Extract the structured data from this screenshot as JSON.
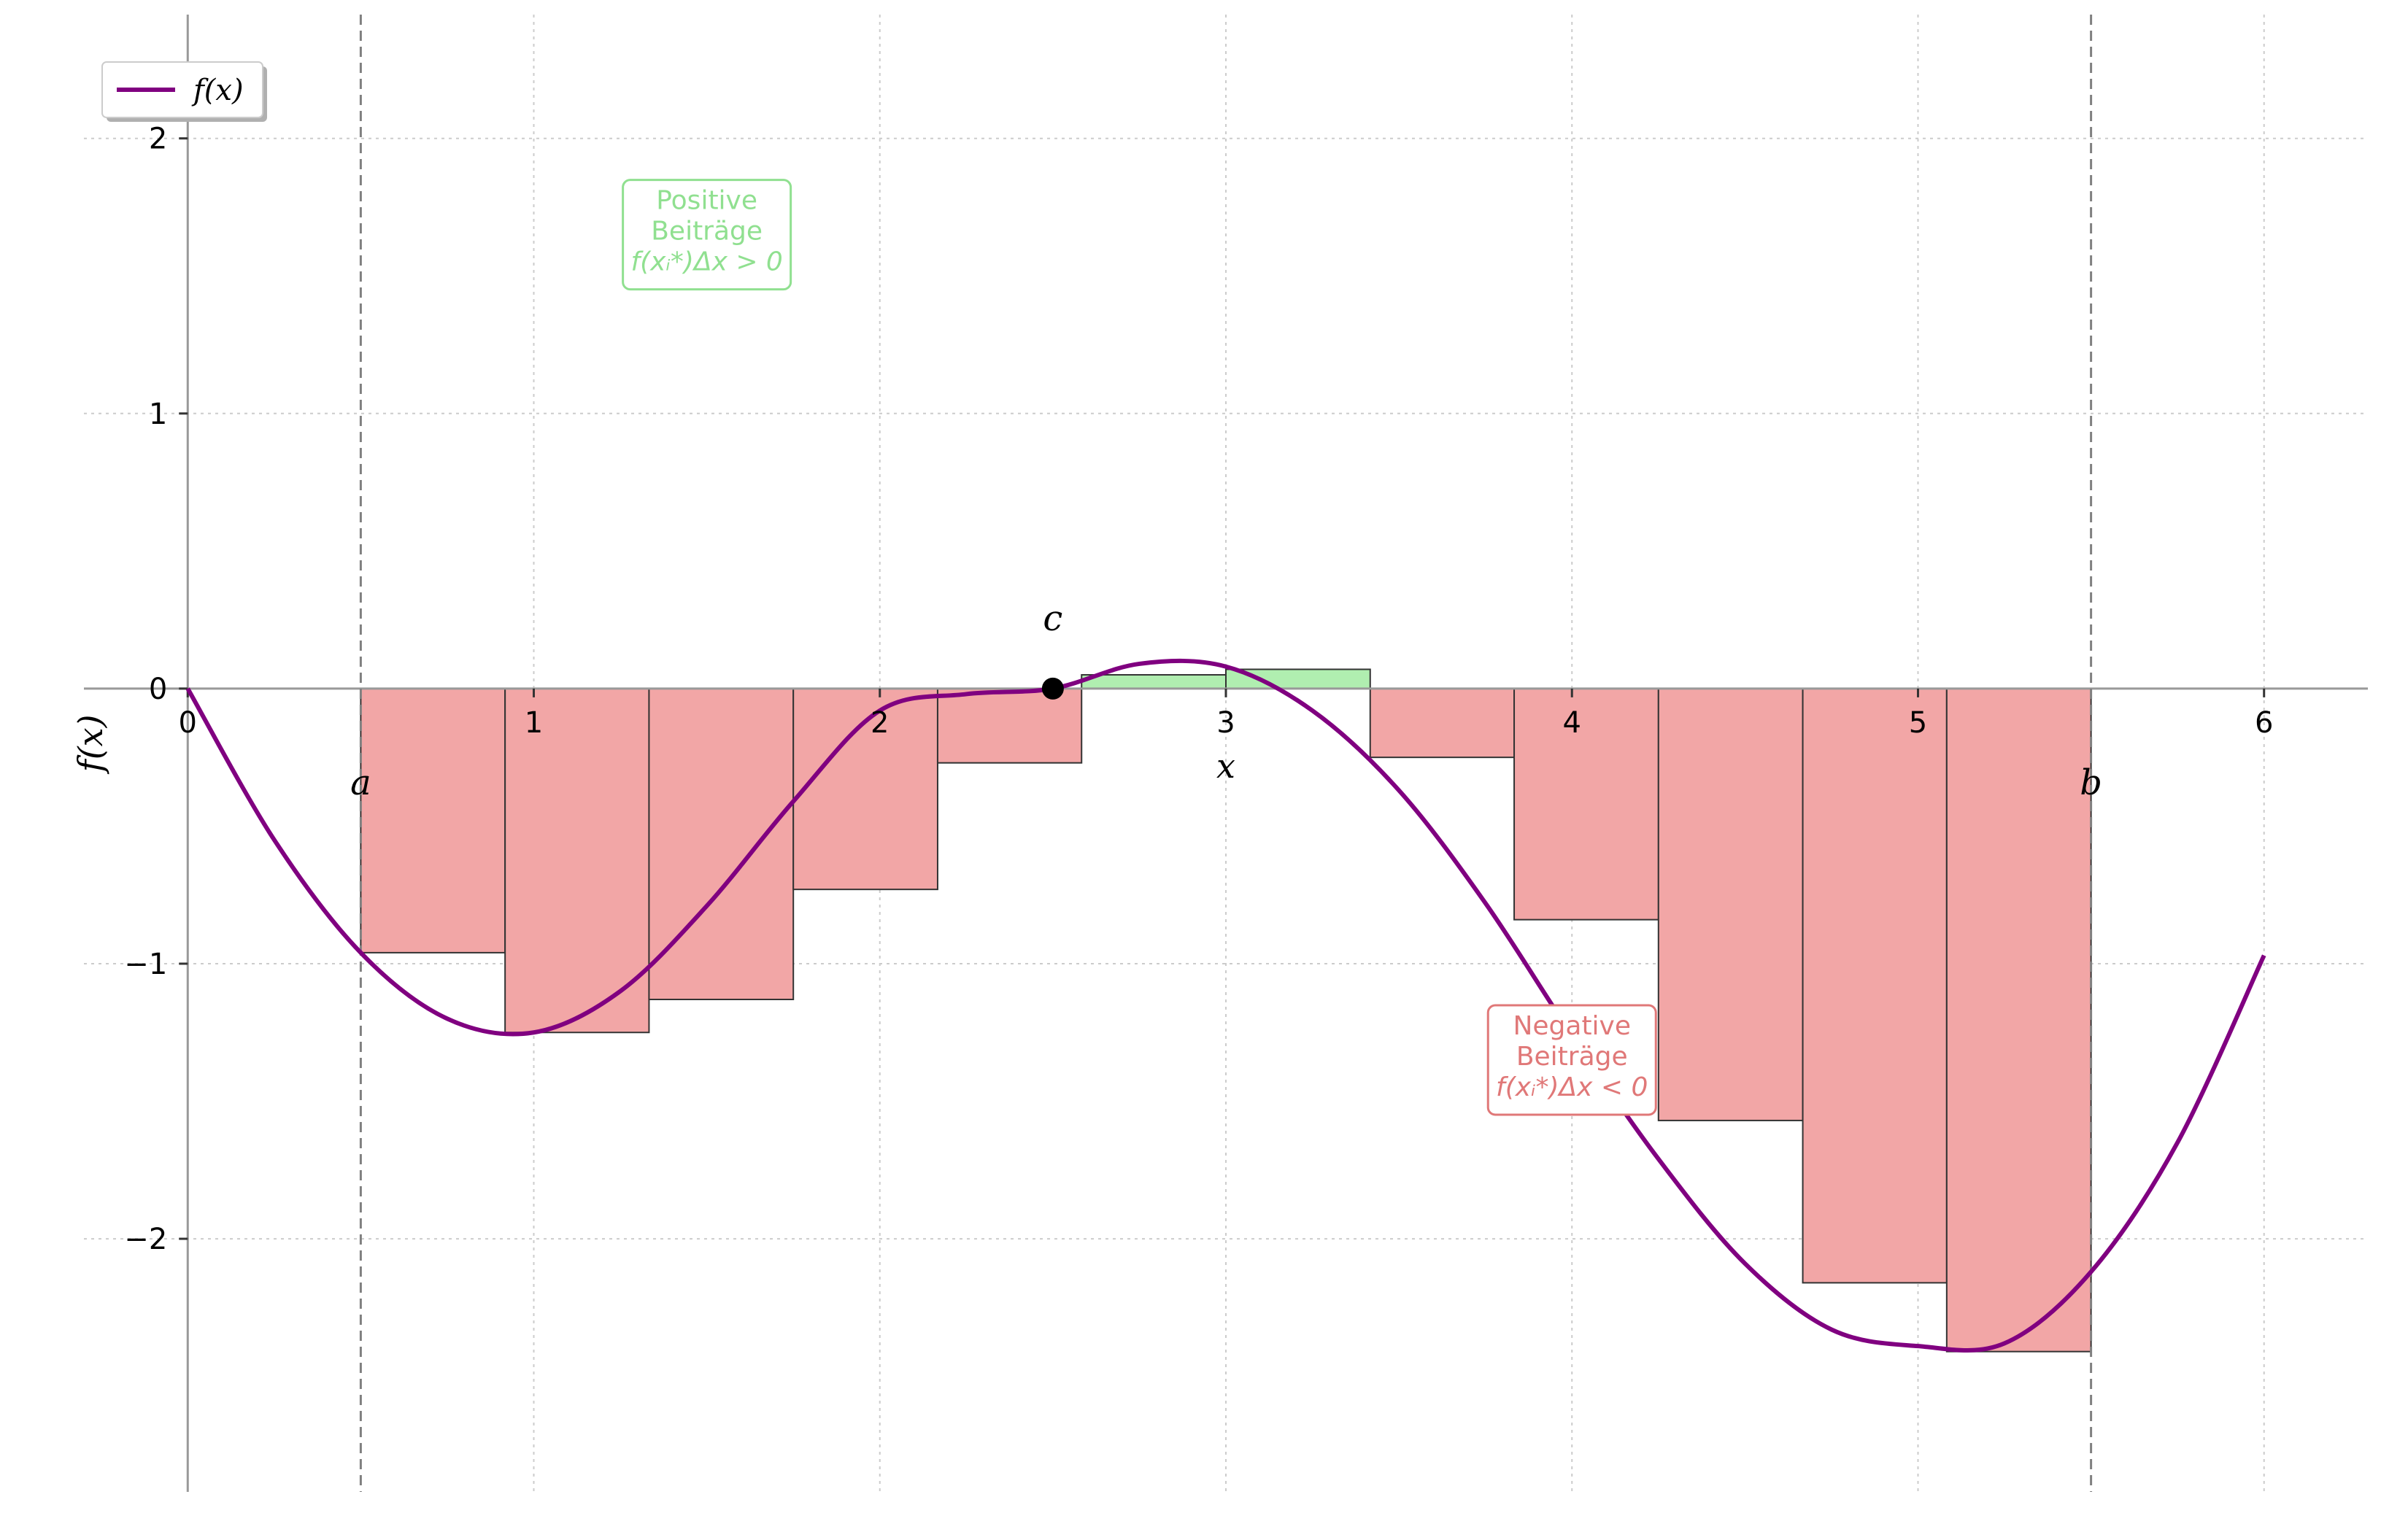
{
  "chart_data": {
    "type": "bar",
    "function_label": "f(x)",
    "xlabel": "x",
    "ylabel": "f(x)",
    "xlim": [
      -0.3,
      6.3
    ],
    "ylim": [
      -2.92,
      2.45
    ],
    "x_ticks": [
      0,
      1,
      2,
      3,
      4,
      5,
      6
    ],
    "x_tick_labels": [
      "0",
      "1",
      "2",
      "3",
      "4",
      "5",
      "6"
    ],
    "y_ticks": [
      -2,
      -1,
      0,
      1,
      2
    ],
    "y_tick_labels": [
      "−2",
      "−1",
      "0",
      "1",
      "2"
    ],
    "grid": true,
    "legend": {
      "position": "top-left",
      "entries": [
        "f(x)"
      ]
    },
    "interval": {
      "a": 0.5,
      "b": 5.5,
      "a_label": "a",
      "b_label": "b"
    },
    "zero_point": {
      "x": 2.5,
      "y": 0,
      "label": "c"
    },
    "rectangles": [
      {
        "x0": 0.5,
        "x1": 0.917,
        "height": -0.96
      },
      {
        "x0": 0.917,
        "x1": 1.333,
        "height": -1.25
      },
      {
        "x0": 1.333,
        "x1": 1.75,
        "height": -1.13
      },
      {
        "x0": 1.75,
        "x1": 2.167,
        "height": -0.73
      },
      {
        "x0": 2.167,
        "x1": 2.583,
        "height": -0.27
      },
      {
        "x0": 2.583,
        "x1": 3.0,
        "height": 0.05
      },
      {
        "x0": 3.0,
        "x1": 3.417,
        "height": 0.07
      },
      {
        "x0": 3.417,
        "x1": 3.833,
        "height": -0.25
      },
      {
        "x0": 3.833,
        "x1": 4.25,
        "height": -0.84
      },
      {
        "x0": 4.25,
        "x1": 4.667,
        "height": -1.57
      },
      {
        "x0": 4.667,
        "x1": 5.083,
        "height": -2.16
      },
      {
        "x0": 5.083,
        "x1": 5.5,
        "height": -2.41
      }
    ],
    "curve": {
      "x": [
        0,
        0.25,
        0.5,
        0.75,
        1.0,
        1.25,
        1.5,
        1.75,
        2.0,
        2.25,
        2.5,
        2.75,
        3.0,
        3.25,
        3.5,
        3.75,
        4.0,
        4.25,
        4.5,
        4.75,
        5.0,
        5.25,
        5.5,
        5.75,
        6.0
      ],
      "y": [
        0,
        -0.55,
        -0.96,
        -1.2,
        -1.25,
        -1.1,
        -0.79,
        -0.41,
        -0.08,
        -0.02,
        0,
        0.09,
        0.08,
        -0.08,
        -0.37,
        -0.78,
        -1.26,
        -1.71,
        -2.09,
        -2.33,
        -2.39,
        -2.38,
        -2.12,
        -1.65,
        -0.97
      ]
    },
    "annotations": [
      {
        "lines": [
          "Positive",
          "Beiträge",
          "f(xᵢ*)Δx > 0"
        ],
        "x": 1.5,
        "y": 1.65,
        "color": "#90e090"
      },
      {
        "lines": [
          "Negative",
          "Beiträge",
          "f(xᵢ*)Δx < 0"
        ],
        "x": 4.0,
        "y": -1.35,
        "color": "#e07878"
      }
    ],
    "colors": {
      "curve": "#800080",
      "positive_fill": "#b0eeb0",
      "negative_fill": "#f2a6a6",
      "bar_edge": "#333333",
      "zero_point": "#000000",
      "grid": "#cccccc",
      "boundary": "#808080"
    }
  }
}
